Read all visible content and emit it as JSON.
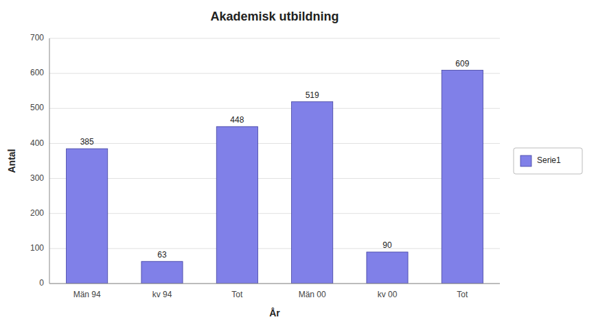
{
  "chart_data": {
    "type": "bar",
    "title": "Akademisk utbildning",
    "xlabel": "År",
    "ylabel": "Antal",
    "categories": [
      "Män 94",
      "kv 94",
      "Tot",
      "Män 00",
      "kv 00",
      "Tot"
    ],
    "series": [
      {
        "name": "Serie1",
        "color": "#8080E8",
        "values": [
          385,
          63,
          448,
          519,
          90,
          609
        ]
      }
    ],
    "ylim": [
      0,
      700
    ],
    "yticks": [
      0,
      100,
      200,
      300,
      400,
      500,
      600,
      700
    ],
    "grid": true,
    "legend": "right",
    "data_labels": true
  }
}
